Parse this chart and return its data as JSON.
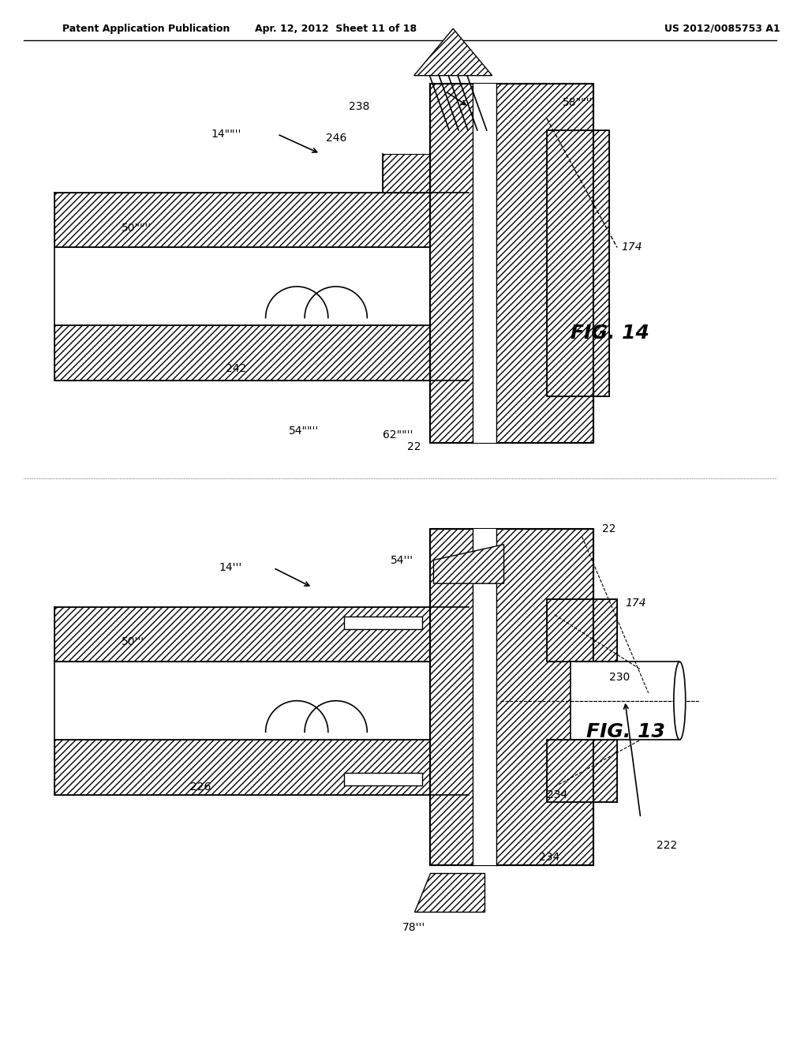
{
  "bg_color": "#ffffff",
  "line_color": "#000000",
  "hatch_color": "#000000",
  "header_left": "Patent Application Publication",
  "header_center": "Apr. 12, 2012  Sheet 11 of 18",
  "header_right": "US 2012/0085753 A1",
  "fig14_label": "FIG. 14",
  "fig13_label": "FIG. 13",
  "fig14_labels": [
    "238",
    "246",
    "14\"\"\"\"",
    "50\"\"\"\"",
    "242",
    "54\"\"\"\"",
    "62\"\"\"\"",
    "22",
    "58\"\"\"\"",
    "174"
  ],
  "fig13_labels": [
    "14\"\"\"",
    "50\"\"\"",
    "54\"\"\"",
    "226",
    "78\"\"\"",
    "234",
    "230",
    "174",
    "22",
    "222",
    "234"
  ]
}
